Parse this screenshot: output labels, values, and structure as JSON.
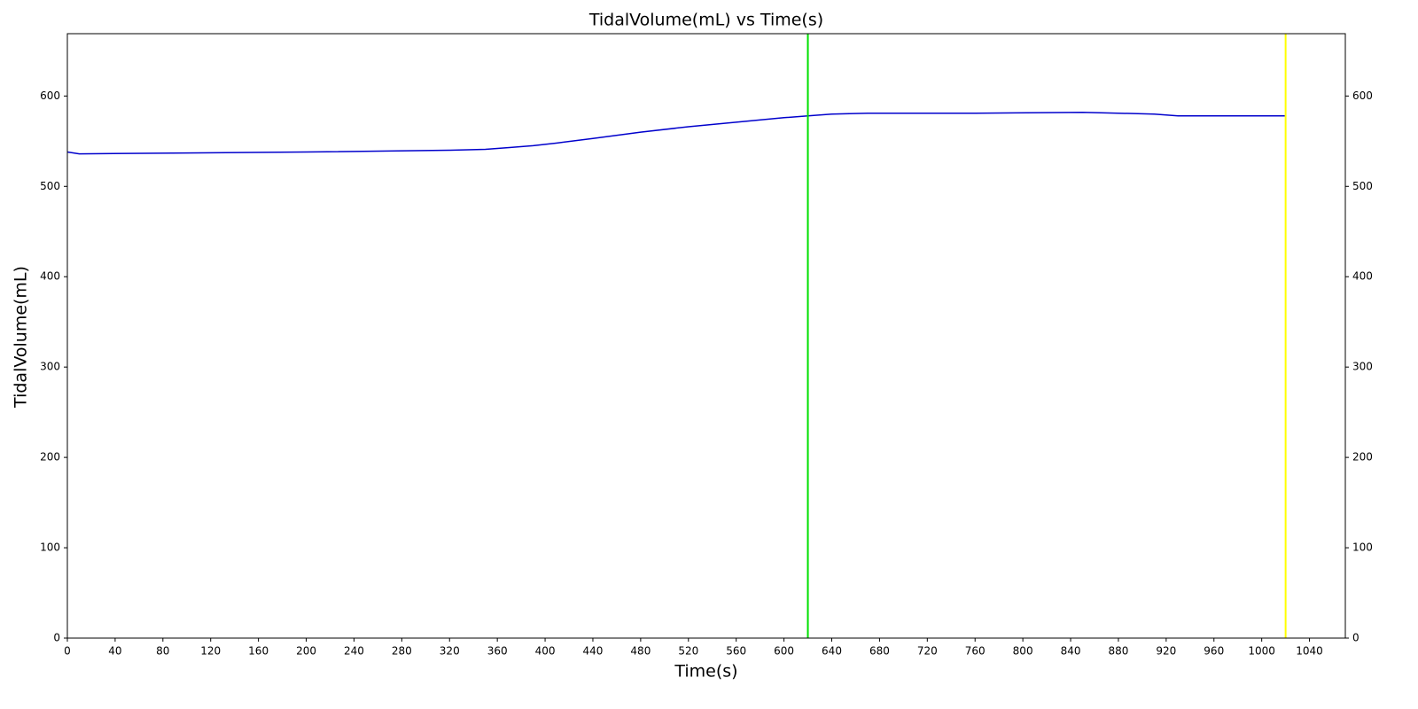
{
  "chart_data": {
    "type": "line",
    "title": "TidalVolume(mL) vs Time(s)",
    "xlabel": "Time(s)",
    "ylabel": "TidalVolume(mL)",
    "x": [
      0,
      10,
      100,
      200,
      320,
      350,
      370,
      390,
      410,
      440,
      480,
      520,
      560,
      600,
      620,
      640,
      670,
      760,
      850,
      880,
      910,
      930,
      1020
    ],
    "values": [
      538,
      536,
      537,
      538,
      540,
      541,
      543,
      545,
      548,
      553,
      560,
      566,
      571,
      576,
      578,
      580,
      581,
      581,
      582,
      581,
      580,
      578,
      578
    ],
    "color": "#0000cc",
    "vlines": [
      {
        "x": 620,
        "color": "#00e000"
      },
      {
        "x": 1020,
        "color": "#ffff00"
      }
    ],
    "xlim": [
      0,
      1070
    ],
    "xticks": [
      0,
      40,
      80,
      120,
      160,
      200,
      240,
      280,
      320,
      360,
      400,
      440,
      480,
      520,
      560,
      600,
      640,
      680,
      720,
      760,
      800,
      840,
      880,
      920,
      960,
      1000,
      1040
    ],
    "ylim": [
      0,
      669
    ],
    "yticks": [
      0,
      100,
      200,
      300,
      400,
      500,
      600
    ],
    "y2lim": [
      0,
      669
    ],
    "y2ticks": [
      0,
      100,
      200,
      300,
      400,
      500,
      600
    ],
    "grid": false
  }
}
